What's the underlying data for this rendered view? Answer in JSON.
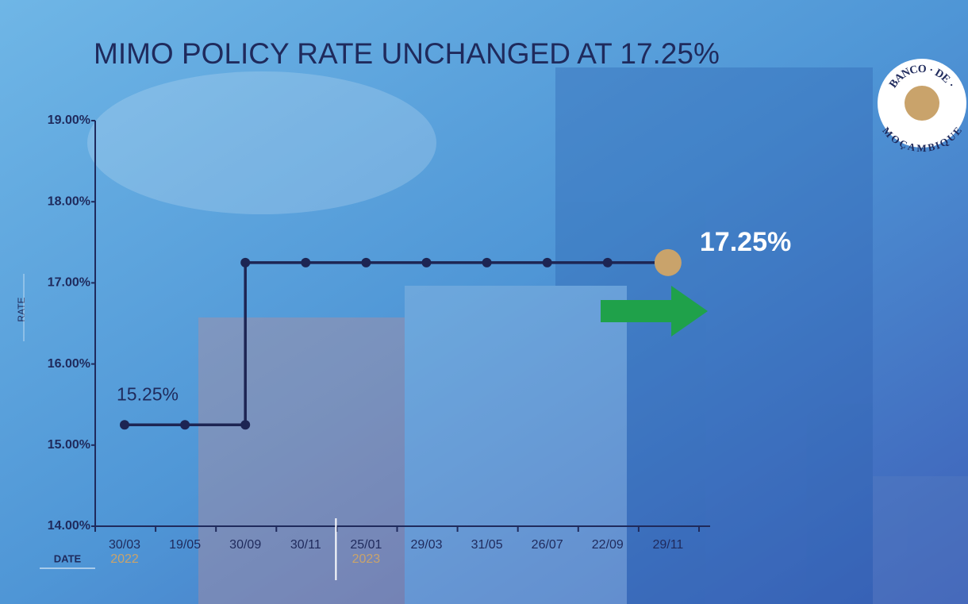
{
  "chart_data": {
    "type": "step-line",
    "title": "MIMO POLICY RATE UNCHANGED AT 17.25%",
    "y_label": "RATE",
    "x_label": "DATE",
    "categories": [
      "30/03",
      "19/05",
      "30/09",
      "30/11",
      "25/01",
      "29/03",
      "31/05",
      "26/07",
      "22/09",
      "29/11"
    ],
    "year_groups": [
      {
        "label": "2022",
        "start": 0
      },
      {
        "label": "2023",
        "start": 4
      }
    ],
    "series": [
      {
        "color": "#1d2553",
        "last_color": "#c9a36b",
        "values": [
          15.25,
          15.25,
          17.25,
          17.25,
          17.25,
          17.25,
          17.25,
          17.25,
          17.25,
          17.25
        ],
        "value_labels": [
          "15.25%",
          null,
          null,
          null,
          null,
          null,
          null,
          null,
          null,
          "17.25%"
        ]
      }
    ],
    "ylim": [
      14,
      19
    ],
    "yticks": [
      {
        "value": 14,
        "label": "14.00%"
      },
      {
        "value": 15,
        "label": "15.00%"
      },
      {
        "value": 16,
        "label": "16.00%"
      },
      {
        "value": 17,
        "label": "17.00%"
      },
      {
        "value": 18,
        "label": "18.00%"
      },
      {
        "value": 19,
        "label": "19.00%"
      }
    ],
    "logo": {
      "top": "BANCO · DE ·",
      "bottom": "MOÇAMBIQUE"
    }
  }
}
